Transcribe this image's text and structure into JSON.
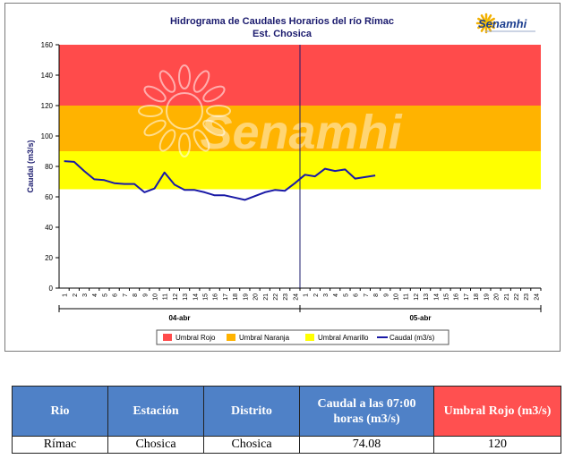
{
  "colors": {
    "rojo": "#ff4b4b",
    "naranja": "#ffb300",
    "amarillo": "#ffff00",
    "caudal": "#1a1aa6",
    "table_header": "#4f81c7",
    "table_header_red": "#ff5050"
  },
  "logo": {
    "text": "Senamhi"
  },
  "watermark": {
    "text": "Senamhi"
  },
  "chart_data": {
    "type": "line",
    "title": "Hidrograma de Caudales Horarios del río Rímac",
    "subtitle": "Est. Chosica",
    "ylabel": "Caudal  (m3/s)",
    "xlabel": "",
    "ylim": [
      0,
      160
    ],
    "yticks": [
      0,
      20,
      40,
      60,
      80,
      100,
      120,
      140,
      160
    ],
    "grid": false,
    "hour_labels": [
      "1",
      "2",
      "3",
      "4",
      "5",
      "6",
      "7",
      "8",
      "9",
      "10",
      "11",
      "12",
      "13",
      "14",
      "15",
      "16",
      "17",
      "18",
      "19",
      "20",
      "21",
      "22",
      "23",
      "24",
      "1",
      "2",
      "3",
      "4",
      "5",
      "6",
      "7",
      "8",
      "9",
      "10",
      "11",
      "12",
      "13",
      "14",
      "15",
      "16",
      "17",
      "18",
      "19",
      "20",
      "21",
      "22",
      "23",
      "24"
    ],
    "days": [
      "04-abr",
      "05-abr"
    ],
    "thresholds": [
      {
        "name": "Umbral Rojo",
        "from": 120,
        "to": 160
      },
      {
        "name": "Umbral Naranja",
        "from": 90,
        "to": 120
      },
      {
        "name": "Umbral Amarillo",
        "from": 65,
        "to": 90
      }
    ],
    "series": [
      {
        "name": "Caudal (m3/s)",
        "x": [
          0,
          1,
          2,
          3,
          4,
          5,
          6,
          7,
          8,
          9,
          10,
          11,
          12,
          13,
          14,
          15,
          16,
          17,
          18,
          19,
          20,
          21,
          22,
          23,
          24,
          25,
          26,
          27,
          28,
          29,
          30,
          31
        ],
        "values": [
          83.5,
          83,
          77,
          71.5,
          71,
          69,
          68.5,
          68.5,
          63,
          65.5,
          76,
          68,
          64.5,
          64.5,
          63,
          61,
          61,
          59.5,
          58,
          60.5,
          63,
          64.5,
          64,
          69,
          74.5,
          73.5,
          78.5,
          77,
          78,
          72,
          73,
          74.08
        ]
      }
    ],
    "legend": [
      "Umbral Rojo",
      "Umbral Naranja",
      "Umbral Amarillo",
      "Caudal (m3/s)"
    ],
    "legend_position": "bottom"
  },
  "table": {
    "headers": [
      "Rio",
      "Estación",
      "Distrito",
      "Caudal a las 07:00 horas (m3/s)",
      "Umbral Rojo (m3/s)"
    ],
    "rows": [
      [
        "Rímac",
        "Chosica",
        "Chosica",
        "74.08",
        "120"
      ]
    ]
  }
}
